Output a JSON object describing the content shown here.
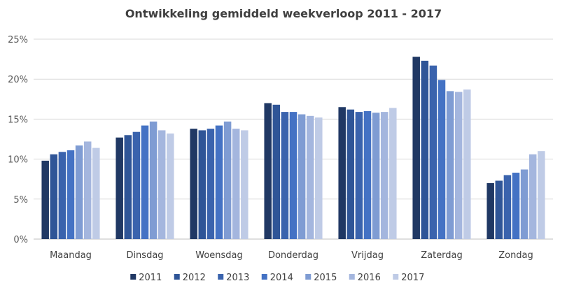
{
  "chart_data": {
    "type": "bar",
    "title": "Ontwikkeling gemiddeld weekverloop 2011 - 2017",
    "categories": [
      "Maandag",
      "Dinsdag",
      "Woensdag",
      "Donderdag",
      "Vrijdag",
      "Zaterdag",
      "Zondag"
    ],
    "series": [
      {
        "name": "2011",
        "color": "#203864",
        "values": [
          9.8,
          12.7,
          13.8,
          17.0,
          16.5,
          22.8,
          7.0
        ]
      },
      {
        "name": "2012",
        "color": "#2f5597",
        "values": [
          10.6,
          13.0,
          13.6,
          16.8,
          16.2,
          22.3,
          7.3
        ]
      },
      {
        "name": "2013",
        "color": "#3a63ad",
        "values": [
          10.9,
          13.4,
          13.8,
          15.9,
          15.9,
          21.7,
          8.0
        ]
      },
      {
        "name": "2014",
        "color": "#4472c4",
        "values": [
          11.1,
          14.2,
          14.2,
          15.9,
          16.0,
          19.9,
          8.3
        ]
      },
      {
        "name": "2015",
        "color": "#7f9cd3",
        "values": [
          11.7,
          14.7,
          14.7,
          15.6,
          15.8,
          18.5,
          8.7
        ]
      },
      {
        "name": "2016",
        "color": "#a4b6de",
        "values": [
          12.2,
          13.6,
          13.8,
          15.4,
          15.9,
          18.4,
          10.6
        ]
      },
      {
        "name": "2017",
        "color": "#bfcbe6",
        "values": [
          11.4,
          13.2,
          13.6,
          15.2,
          16.4,
          18.7,
          11.0
        ]
      }
    ],
    "ylim": [
      0,
      25
    ],
    "yticks": [
      "0%",
      "5%",
      "10%",
      "15%",
      "20%",
      "25%"
    ],
    "grid": true,
    "legend": "bottom"
  }
}
